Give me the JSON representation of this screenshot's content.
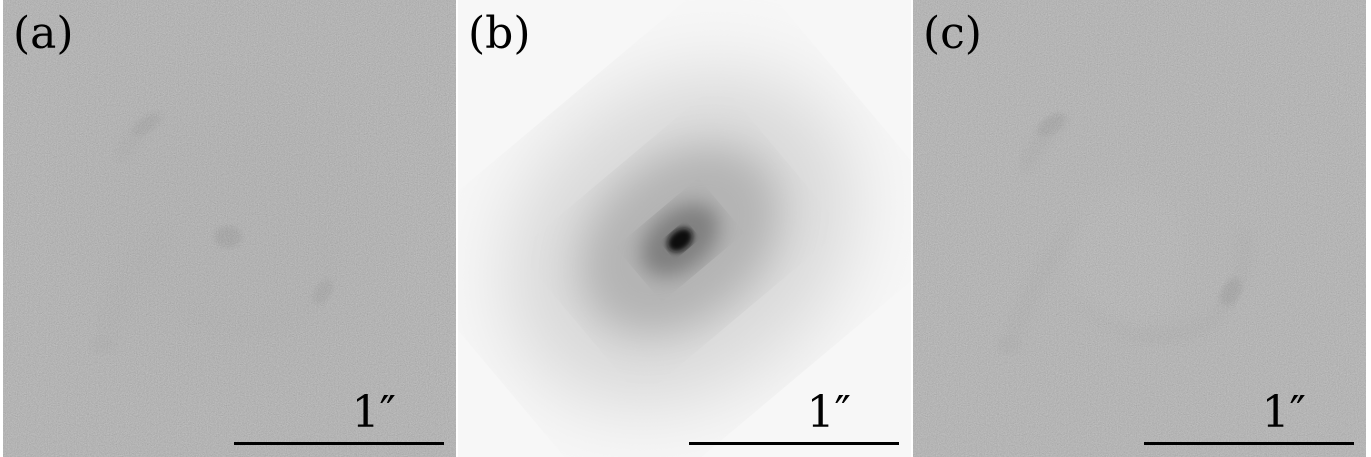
{
  "panels": [
    {
      "label": "(a)",
      "scale_text": "1″"
    },
    {
      "label": "(b)",
      "scale_text": "1″"
    },
    {
      "label": "(c)",
      "scale_text": "1″"
    }
  ],
  "colors": {
    "noise_background": "#9a9a9a",
    "model_background": "#f6f6f6",
    "dark_feature": "#1a1a1a"
  }
}
